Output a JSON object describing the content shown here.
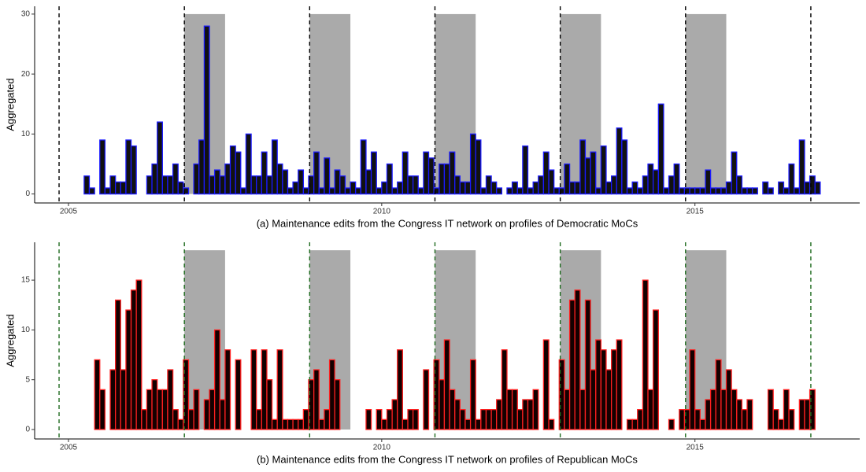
{
  "chart_data": [
    {
      "type": "histogram",
      "y_label": "Aggregated",
      "caption": "(a) Maintenance edits from the Congress IT network on profiles of Democratic MoCs",
      "fill": "#111111",
      "stroke": "#1a1aff",
      "vline_color": "#000000",
      "shade_color": "#aaaaaa",
      "xlim": [
        2004.46,
        2017.63
      ],
      "xticks": [
        2005,
        2010,
        2015
      ],
      "ylim": [
        -1.5,
        31.3
      ],
      "yticks": [
        0,
        10,
        20,
        30
      ],
      "grid": false,
      "vlines": [
        2004.85,
        2006.85,
        2008.85,
        2010.85,
        2012.85,
        2014.85,
        2016.85
      ],
      "shaded_regions": [
        [
          2006.85,
          2007.5
        ],
        [
          2008.85,
          2009.5
        ],
        [
          2010.85,
          2011.5
        ],
        [
          2012.85,
          2013.5
        ],
        [
          2014.85,
          2015.5
        ]
      ],
      "shaded_ymax": 30,
      "bins": [
        2005.083,
        2005.167,
        2005.25,
        2005.333,
        2005.417,
        2005.5,
        2005.583,
        2005.667,
        2005.75,
        2005.833,
        2005.917,
        2006,
        2006.083,
        2006.167,
        2006.25,
        2006.333,
        2006.417,
        2006.5,
        2006.583,
        2006.667,
        2006.75,
        2006.833,
        2006.917,
        2007,
        2007.083,
        2007.167,
        2007.25,
        2007.333,
        2007.417,
        2007.5,
        2007.583,
        2007.667,
        2007.75,
        2007.833,
        2007.917,
        2008,
        2008.083,
        2008.167,
        2008.25,
        2008.333,
        2008.417,
        2008.5,
        2008.583,
        2008.667,
        2008.75,
        2008.833,
        2008.917,
        2009,
        2009.083,
        2009.167,
        2009.25,
        2009.333,
        2009.417,
        2009.5,
        2009.583,
        2009.667,
        2009.75,
        2009.833,
        2009.917,
        2010,
        2010.083,
        2010.167,
        2010.25,
        2010.333,
        2010.417,
        2010.5,
        2010.583,
        2010.667,
        2010.75,
        2010.833,
        2010.917,
        2011,
        2011.083,
        2011.167,
        2011.25,
        2011.333,
        2011.417,
        2011.5,
        2011.583,
        2011.667,
        2011.75,
        2011.833,
        2011.917,
        2012,
        2012.083,
        2012.167,
        2012.25,
        2012.333,
        2012.417,
        2012.5,
        2012.583,
        2012.667,
        2012.75,
        2012.833,
        2012.917,
        2013,
        2013.083,
        2013.167,
        2013.25,
        2013.333,
        2013.417,
        2013.5,
        2013.583,
        2013.667,
        2013.75,
        2013.833,
        2013.917,
        2014,
        2014.083,
        2014.167,
        2014.25,
        2014.333,
        2014.417,
        2014.5,
        2014.583,
        2014.667,
        2014.75,
        2014.833,
        2014.917,
        2015,
        2015.083,
        2015.167,
        2015.25,
        2015.333,
        2015.417,
        2015.5,
        2015.583,
        2015.667,
        2015.75,
        2015.833,
        2015.917,
        2016,
        2016.083,
        2016.167,
        2016.25,
        2016.333,
        2016.417,
        2016.5,
        2016.583,
        2016.667,
        2016.75,
        2016.833,
        2016.917,
        2017
      ],
      "counts": [
        0,
        0,
        3,
        1,
        0,
        9,
        1,
        3,
        2,
        2,
        9,
        8,
        0,
        0,
        3,
        5,
        12,
        3,
        3,
        5,
        2,
        1,
        0,
        5,
        9,
        28,
        3,
        4,
        3,
        5,
        8,
        7,
        1,
        10,
        3,
        3,
        7,
        3,
        9,
        5,
        4,
        1,
        2,
        4,
        1,
        3,
        7,
        1,
        6,
        1,
        4,
        3,
        1,
        2,
        1,
        9,
        4,
        7,
        1,
        2,
        5,
        1,
        2,
        7,
        3,
        3,
        1,
        7,
        6,
        1,
        5,
        5,
        7,
        3,
        2,
        2,
        10,
        9,
        1,
        3,
        2,
        1,
        0,
        1,
        2,
        1,
        8,
        1,
        2,
        3,
        7,
        4,
        1,
        1,
        5,
        2,
        2,
        9,
        6,
        7,
        1,
        8,
        2,
        3,
        11,
        9,
        1,
        2,
        1,
        3,
        5,
        4,
        15,
        1,
        3,
        5,
        1,
        1,
        1,
        1,
        1,
        4,
        1,
        1,
        1,
        2,
        7,
        3,
        1,
        1,
        1,
        0,
        2,
        1,
        0,
        2,
        1,
        5,
        1,
        9,
        2,
        3,
        2
      ]
    },
    {
      "type": "histogram",
      "y_label": "Aggregated",
      "caption": "(b) Maintenance edits from the Congress IT network on profiles of Republican MoCs",
      "fill": "#140000",
      "stroke": "#ff2020",
      "vline_color": "#1e6b1e",
      "shade_color": "#aaaaaa",
      "xlim": [
        2004.46,
        2017.63
      ],
      "xticks": [
        2005,
        2010,
        2015
      ],
      "ylim": [
        -0.95,
        18.8
      ],
      "yticks": [
        0,
        5,
        10,
        15
      ],
      "grid": false,
      "vlines": [
        2004.85,
        2006.85,
        2008.85,
        2010.85,
        2012.85,
        2014.85,
        2016.85
      ],
      "shaded_regions": [
        [
          2006.85,
          2007.5
        ],
        [
          2008.85,
          2009.5
        ],
        [
          2010.85,
          2011.5
        ],
        [
          2012.85,
          2013.5
        ],
        [
          2014.85,
          2015.5
        ]
      ],
      "shaded_ymax": 18,
      "bins": [
        2005.083,
        2005.167,
        2005.25,
        2005.333,
        2005.417,
        2005.5,
        2005.583,
        2005.667,
        2005.75,
        2005.833,
        2005.917,
        2006,
        2006.083,
        2006.167,
        2006.25,
        2006.333,
        2006.417,
        2006.5,
        2006.583,
        2006.667,
        2006.75,
        2006.833,
        2006.917,
        2007,
        2007.083,
        2007.167,
        2007.25,
        2007.333,
        2007.417,
        2007.5,
        2007.583,
        2007.667,
        2007.75,
        2007.833,
        2007.917,
        2008,
        2008.083,
        2008.167,
        2008.25,
        2008.333,
        2008.417,
        2008.5,
        2008.583,
        2008.667,
        2008.75,
        2008.833,
        2008.917,
        2009,
        2009.083,
        2009.167,
        2009.25,
        2009.333,
        2009.417,
        2009.5,
        2009.583,
        2009.667,
        2009.75,
        2009.833,
        2009.917,
        2010,
        2010.083,
        2010.167,
        2010.25,
        2010.333,
        2010.417,
        2010.5,
        2010.583,
        2010.667,
        2010.75,
        2010.833,
        2010.917,
        2011,
        2011.083,
        2011.167,
        2011.25,
        2011.333,
        2011.417,
        2011.5,
        2011.583,
        2011.667,
        2011.75,
        2011.833,
        2011.917,
        2012,
        2012.083,
        2012.167,
        2012.25,
        2012.333,
        2012.417,
        2012.5,
        2012.583,
        2012.667,
        2012.75,
        2012.833,
        2012.917,
        2013,
        2013.083,
        2013.167,
        2013.25,
        2013.333,
        2013.417,
        2013.5,
        2013.583,
        2013.667,
        2013.75,
        2013.833,
        2013.917,
        2014,
        2014.083,
        2014.167,
        2014.25,
        2014.333,
        2014.417,
        2014.5,
        2014.583,
        2014.667,
        2014.75,
        2014.833,
        2014.917,
        2015,
        2015.083,
        2015.167,
        2015.25,
        2015.333,
        2015.417,
        2015.5,
        2015.583,
        2015.667,
        2015.75,
        2015.833,
        2015.917,
        2016,
        2016.083,
        2016.167,
        2016.25,
        2016.333,
        2016.417,
        2016.5,
        2016.583,
        2016.667,
        2016.75,
        2016.833,
        2016.917,
        2017
      ],
      "counts": [
        0,
        0,
        0,
        0,
        7,
        4,
        0,
        6,
        13,
        6,
        12,
        14,
        15,
        2,
        4,
        5,
        4,
        4,
        6,
        2,
        1,
        7,
        2,
        4,
        0,
        3,
        4,
        10,
        3,
        8,
        0,
        7,
        0,
        0,
        8,
        2,
        8,
        5,
        1,
        8,
        1,
        1,
        1,
        1,
        2,
        5,
        6,
        1,
        2,
        7,
        5,
        0,
        0,
        0,
        0,
        0,
        2,
        0,
        2,
        1,
        2,
        3,
        8,
        1,
        2,
        2,
        0,
        6,
        0,
        7,
        5,
        9,
        4,
        3,
        2,
        1,
        7,
        1,
        2,
        2,
        2,
        3,
        8,
        4,
        4,
        2,
        3,
        3,
        4,
        0,
        9,
        1,
        0,
        7,
        4,
        13,
        14,
        4,
        13,
        6,
        9,
        8,
        6,
        8,
        9,
        0,
        1,
        1,
        2,
        15,
        4,
        12,
        0,
        0,
        1,
        0,
        2,
        2,
        8,
        2,
        1,
        3,
        4,
        7,
        4,
        6,
        4,
        3,
        2,
        3,
        0,
        0,
        0,
        4,
        2,
        1,
        4,
        2,
        0,
        3,
        3,
        4,
        0
      ]
    }
  ]
}
